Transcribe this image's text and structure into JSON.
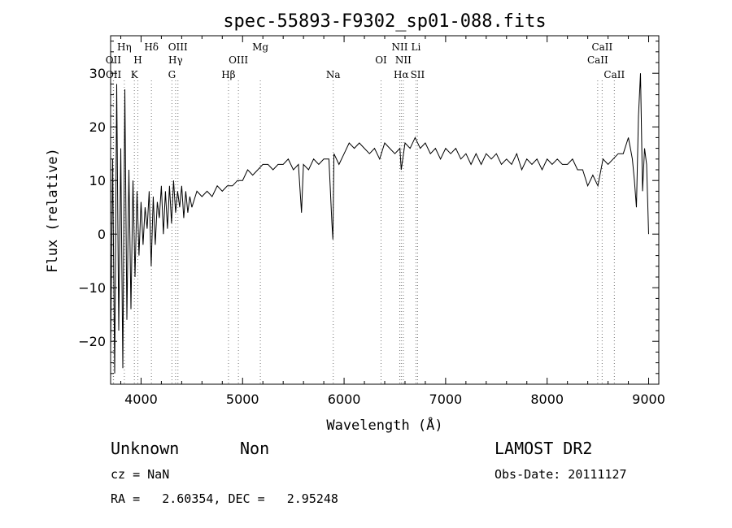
{
  "chart_data": {
    "type": "line",
    "title": "spec-55893-F9302_sp01-088.fits",
    "xlabel": "Wavelength (Å)",
    "ylabel": "Flux (relative)",
    "xlim": [
      3700,
      9100
    ],
    "ylim": [
      -28,
      37
    ],
    "xticks": [
      4000,
      5000,
      6000,
      7000,
      8000,
      9000
    ],
    "yticks": [
      -20,
      -10,
      0,
      10,
      20,
      30
    ],
    "grid": false,
    "series": [
      {
        "x": [
          3700,
          3720,
          3740,
          3760,
          3780,
          3800,
          3820,
          3840,
          3860,
          3880,
          3900,
          3920,
          3940,
          3960,
          3980,
          4000,
          4020,
          4040,
          4060,
          4080,
          4100,
          4120,
          4140,
          4160,
          4180,
          4200,
          4220,
          4240,
          4260,
          4280,
          4300,
          4320,
          4340,
          4360,
          4380,
          4400,
          4420,
          4440,
          4460,
          4480,
          4500,
          4550,
          4600,
          4650,
          4700,
          4750,
          4800,
          4850,
          4900,
          4950,
          5000,
          5050,
          5100,
          5150,
          5200,
          5250,
          5300,
          5350,
          5400,
          5450,
          5500,
          5550,
          5580,
          5600,
          5650,
          5700,
          5750,
          5800,
          5850,
          5880,
          5890,
          5900,
          5950,
          6000,
          6050,
          6100,
          6150,
          6200,
          6250,
          6300,
          6350,
          6400,
          6450,
          6500,
          6550,
          6563,
          6600,
          6650,
          6700,
          6750,
          6800,
          6850,
          6900,
          6950,
          7000,
          7050,
          7100,
          7150,
          7200,
          7250,
          7300,
          7350,
          7400,
          7450,
          7500,
          7550,
          7600,
          7650,
          7700,
          7750,
          7800,
          7850,
          7900,
          7950,
          8000,
          8050,
          8100,
          8150,
          8200,
          8250,
          8300,
          8350,
          8400,
          8450,
          8500,
          8550,
          8600,
          8650,
          8700,
          8750,
          8800,
          8820,
          8840,
          8860,
          8880,
          8900,
          8920,
          8940,
          8960,
          8980,
          9000
        ],
        "y": [
          -22,
          14,
          -26,
          28,
          -18,
          16,
          -25,
          27,
          -16,
          12,
          -14,
          10,
          -8,
          8,
          -4,
          6,
          -2,
          5,
          1,
          8,
          -6,
          7,
          -2,
          6,
          3,
          9,
          0,
          8,
          1,
          9,
          2,
          10,
          4,
          8,
          5,
          9,
          3,
          8,
          4,
          7,
          5,
          8,
          7,
          8,
          7,
          9,
          8,
          9,
          9,
          10,
          10,
          12,
          11,
          12,
          13,
          13,
          12,
          13,
          13,
          14,
          12,
          13,
          4,
          13,
          12,
          14,
          13,
          14,
          14,
          2,
          -1,
          15,
          13,
          15,
          17,
          16,
          17,
          16,
          15,
          16,
          14,
          17,
          16,
          15,
          16,
          12,
          17,
          16,
          18,
          16,
          17,
          15,
          16,
          14,
          16,
          15,
          16,
          14,
          15,
          13,
          15,
          13,
          15,
          14,
          15,
          13,
          14,
          13,
          15,
          12,
          14,
          13,
          14,
          12,
          14,
          13,
          14,
          13,
          13,
          14,
          12,
          12,
          9,
          11,
          9,
          14,
          13,
          14,
          15,
          15,
          18,
          16,
          14,
          10,
          5,
          22,
          30,
          8,
          16,
          13,
          0
        ]
      }
    ],
    "spectral_lines": [
      {
        "label": "Hη",
        "wavelength": 3835,
        "row": 1
      },
      {
        "label": "OII",
        "wavelength": 3727,
        "row": 2
      },
      {
        "label": "OII",
        "wavelength": 3729,
        "row": 3
      },
      {
        "label": "H",
        "wavelength": 3968,
        "row": 2
      },
      {
        "label": "K",
        "wavelength": 3934,
        "row": 3
      },
      {
        "label": "Hδ",
        "wavelength": 4102,
        "row": 1
      },
      {
        "label": "OIII",
        "wavelength": 4363,
        "row": 1
      },
      {
        "label": "Hγ",
        "wavelength": 4340,
        "row": 2
      },
      {
        "label": "G",
        "wavelength": 4304,
        "row": 3
      },
      {
        "label": "Hβ",
        "wavelength": 4861,
        "row": 3
      },
      {
        "label": "OIII",
        "wavelength": 4959,
        "row": 2
      },
      {
        "label": "Mg",
        "wavelength": 5175,
        "row": 1
      },
      {
        "label": "Na",
        "wavelength": 5893,
        "row": 3
      },
      {
        "label": "OI",
        "wavelength": 6364,
        "row": 2
      },
      {
        "label": "NII",
        "wavelength": 6548,
        "row": 1
      },
      {
        "label": "NII",
        "wavelength": 6583,
        "row": 2
      },
      {
        "label": "Hα",
        "wavelength": 6563,
        "row": 3
      },
      {
        "label": "Li",
        "wavelength": 6708,
        "row": 1
      },
      {
        "label": "SII",
        "wavelength": 6724,
        "row": 3
      },
      {
        "label": "CaII",
        "wavelength": 8542,
        "row": 1
      },
      {
        "label": "CaII",
        "wavelength": 8498,
        "row": 2
      },
      {
        "label": "CaII",
        "wavelength": 8662,
        "row": 3
      }
    ]
  },
  "info": {
    "classification": "Unknown",
    "subclass": "Non",
    "cz": "cz = NaN",
    "coords": "RA =   2.60354, DEC =   2.95248",
    "survey": "LAMOST DR2",
    "obs_date": "Obs-Date: 20111127"
  }
}
